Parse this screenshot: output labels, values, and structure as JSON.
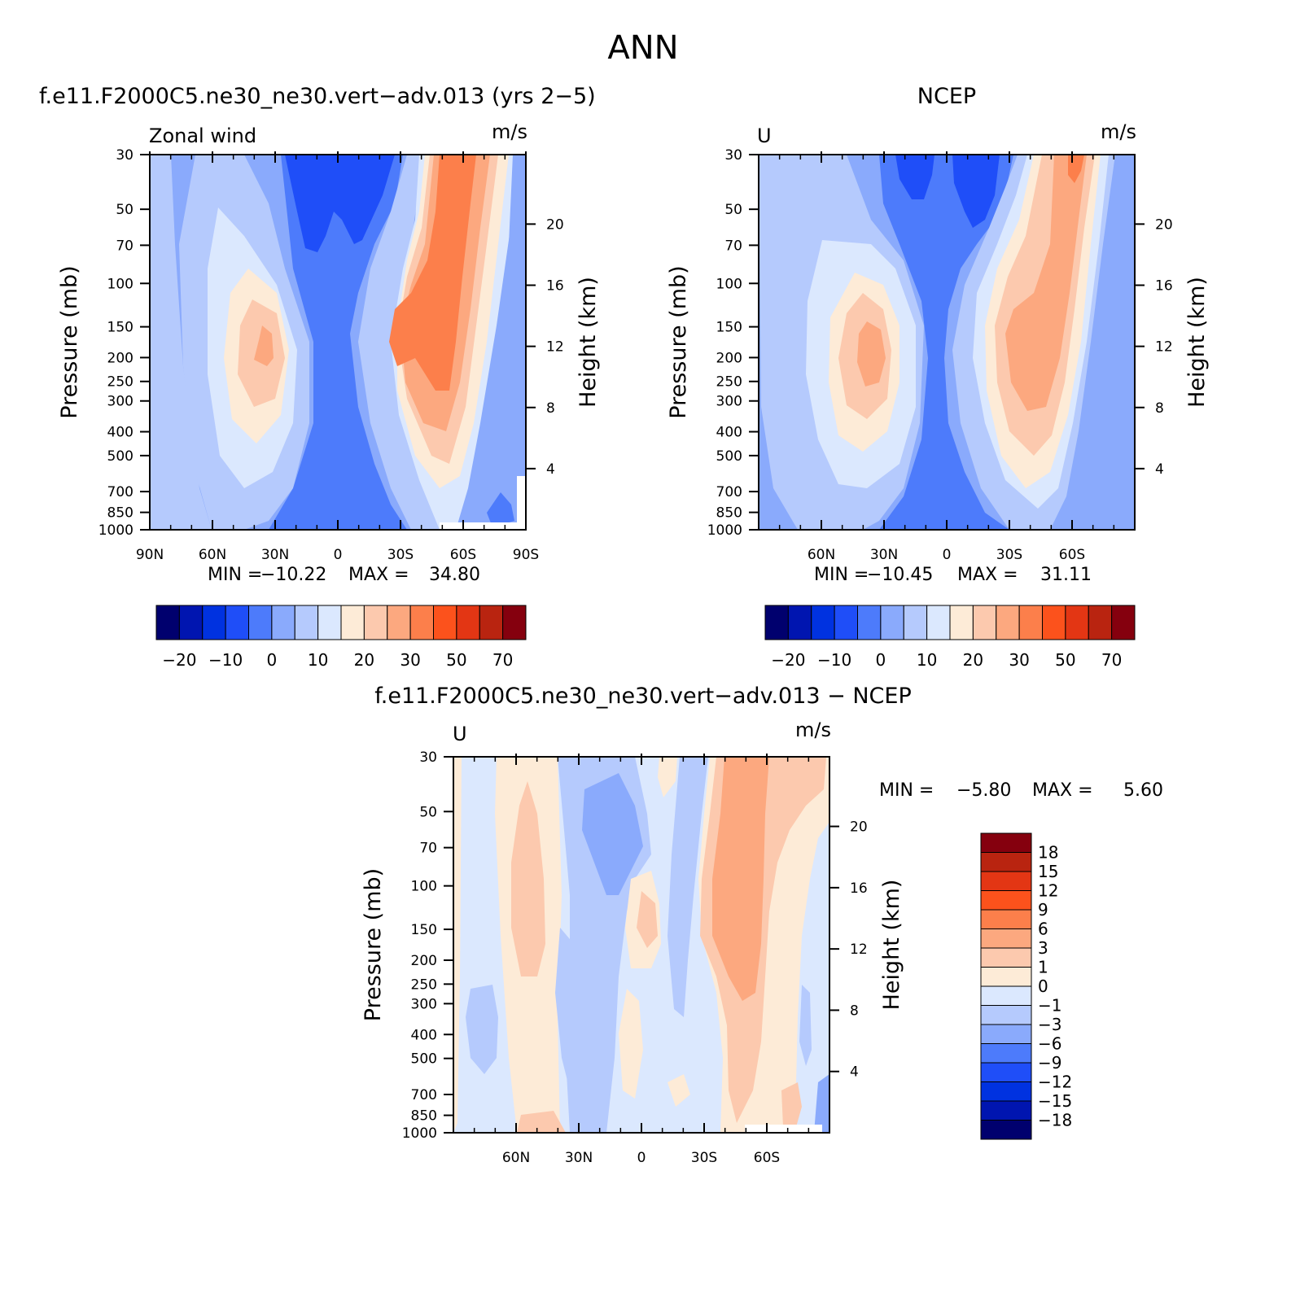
{
  "figure_title": "ANN",
  "colors": {
    "field_scale": [
      "#00006e",
      "#0015b0",
      "#0032e0",
      "#1f4ef8",
      "#4d7bfb",
      "#8aaafc",
      "#b5cafd",
      "#dbe8fe",
      "#fdebd7",
      "#fcc9ae",
      "#fca87f",
      "#fc7f4b",
      "#fc521c",
      "#e33614",
      "#b92410",
      "#85000e"
    ],
    "diff_scale": [
      "#85000e",
      "#b92410",
      "#e33614",
      "#fc521c",
      "#fc7f4b",
      "#fca87f",
      "#fcc9ae",
      "#fdebd7",
      "#dbe8fe",
      "#b5cafd",
      "#8aaafc",
      "#4d7bfb",
      "#1f4ef8",
      "#0032e0",
      "#0015b0",
      "#00006e"
    ]
  },
  "chart_data": [
    {
      "type": "heatmap",
      "title": "f.e11.F2000C5.ne30_ne30.vert−adv.013 (yrs 2−5)",
      "left_label": "Zonal wind",
      "units": "m/s",
      "ylabel": "Pressure (mb)",
      "y2label": "Height (km)",
      "x_ticks": [
        "90N",
        "60N",
        "30N",
        "0",
        "30S",
        "60S",
        "90S"
      ],
      "y_ticks": [
        "30",
        "50",
        "70",
        "100",
        "150",
        "200",
        "250",
        "300",
        "400",
        "500",
        "700",
        "850",
        "1000"
      ],
      "y2_ticks": [
        "20",
        "16",
        "12",
        "8",
        "4"
      ],
      "min_label": "MIN =",
      "min": "−10.22",
      "max_label": "MAX =",
      "max": "34.80",
      "colorbar_labels": [
        "−20",
        "−10",
        "0",
        "10",
        "20",
        "30",
        "50",
        "70"
      ]
    },
    {
      "type": "heatmap",
      "title": "NCEP",
      "left_label": "U",
      "units": "m/s",
      "ylabel": "Pressure (mb)",
      "y2label": "Height (km)",
      "x_ticks": [
        "60N",
        "30N",
        "0",
        "30S",
        "60S"
      ],
      "y_ticks": [
        "30",
        "50",
        "70",
        "100",
        "150",
        "200",
        "250",
        "300",
        "400",
        "500",
        "700",
        "850",
        "1000"
      ],
      "y2_ticks": [
        "20",
        "16",
        "12",
        "8",
        "4"
      ],
      "min_label": "MIN =",
      "min": "−10.45",
      "max_label": "MAX =",
      "max": "31.11",
      "colorbar_labels": [
        "−20",
        "−10",
        "0",
        "10",
        "20",
        "30",
        "50",
        "70"
      ]
    },
    {
      "type": "heatmap",
      "title": "f.e11.F2000C5.ne30_ne30.vert−adv.013 − NCEP",
      "left_label": "U",
      "units": "m/s",
      "ylabel": "Pressure (mb)",
      "y2label": "Height (km)",
      "x_ticks": [
        "60N",
        "30N",
        "0",
        "30S",
        "60S"
      ],
      "y_ticks": [
        "30",
        "50",
        "70",
        "100",
        "150",
        "200",
        "250",
        "300",
        "400",
        "500",
        "700",
        "850",
        "1000"
      ],
      "y2_ticks": [
        "20",
        "16",
        "12",
        "8",
        "4"
      ],
      "min_label": "MIN =",
      "min": "−5.80",
      "max_label": "MAX =",
      "max": "5.60",
      "colorbar_labels": [
        "18",
        "15",
        "12",
        "9",
        "6",
        "3",
        "1",
        "0",
        "−1",
        "−3",
        "−6",
        "−9",
        "−12",
        "−15",
        "−18"
      ]
    }
  ]
}
